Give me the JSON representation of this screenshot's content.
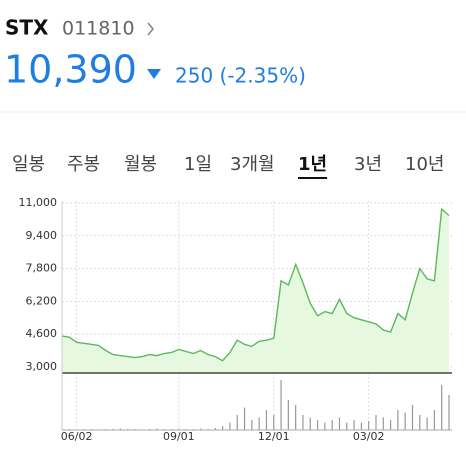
{
  "header": {
    "name": "STX",
    "code": "011810",
    "price": "10,390",
    "change": "250 (-2.35%)"
  },
  "tabs": [
    "일봉",
    "주봉",
    "월봉",
    "1일",
    "3개월",
    "1년",
    "3년",
    "10년"
  ],
  "selected_tab": 5,
  "chart_data": {
    "type": "line",
    "categories": [
      null,
      null,
      "06/02",
      null,
      null,
      null,
      null,
      null,
      null,
      null,
      null,
      null,
      null,
      null,
      null,
      null,
      "09/01",
      null,
      null,
      null,
      null,
      null,
      null,
      null,
      null,
      null,
      null,
      null,
      null,
      "12/01",
      null,
      null,
      null,
      null,
      null,
      null,
      null,
      null,
      null,
      null,
      null,
      null,
      "03/02",
      null,
      null,
      null,
      null,
      null,
      null,
      null,
      null,
      null,
      null,
      null
    ],
    "series": [
      {
        "color": "#5cb85c",
        "values": [
          4500,
          4450,
          4200,
          4150,
          4100,
          4050,
          3800,
          3600,
          3550,
          3500,
          3450,
          3500,
          3600,
          3550,
          3650,
          3700,
          3850,
          3750,
          3650,
          3800,
          3600,
          3500,
          3300,
          3700,
          4300,
          4100,
          4000,
          4250,
          4300,
          4400,
          7200,
          7000,
          8000,
          7100,
          6100,
          5500,
          5700,
          5600,
          6300,
          5600,
          5400,
          5300,
          5200,
          5100,
          4800,
          4700,
          5600,
          5300,
          6600,
          7800,
          7300,
          7200,
          10700,
          10390
        ]
      }
    ],
    "volume": {
      "color": "#999999",
      "values": [
        2,
        2,
        1,
        2,
        2,
        1,
        2,
        2,
        3,
        2,
        2,
        1,
        2,
        3,
        2,
        2,
        3,
        2,
        2,
        3,
        2,
        4,
        8,
        15,
        30,
        45,
        20,
        25,
        40,
        30,
        100,
        60,
        50,
        30,
        25,
        20,
        15,
        20,
        25,
        15,
        20,
        15,
        18,
        30,
        25,
        20,
        40,
        35,
        50,
        30,
        25,
        40,
        90,
        70
      ]
    },
    "ylim": [
      2700,
      11100
    ],
    "yticks": [
      {
        "value": 3000,
        "label": "3,000"
      },
      {
        "value": 4600,
        "label": "4,600"
      },
      {
        "value": 6200,
        "label": "6,200"
      },
      {
        "value": 7800,
        "label": "7,800"
      },
      {
        "value": 9400,
        "label": "9,400"
      },
      {
        "value": 11000,
        "label": "11,000"
      }
    ],
    "grid": true
  }
}
